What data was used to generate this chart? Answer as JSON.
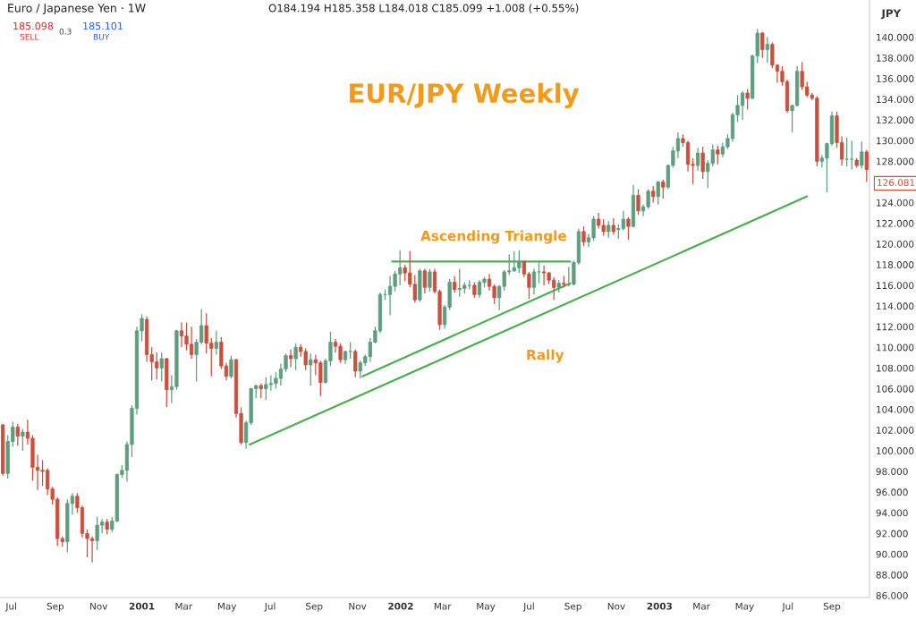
{
  "chart_data": {
    "type": "candlestick",
    "title": "EUR/JPY Weekly",
    "ylabel": "JPY",
    "x": [
      "2000-06-19",
      "2000-06-26",
      "2000-07-03",
      "2000-07-10",
      "2000-07-17",
      "2000-07-24",
      "2000-07-31",
      "2000-08-07",
      "2000-08-14",
      "2000-08-21",
      "2000-08-28",
      "2000-09-04",
      "2000-09-11",
      "2000-09-18",
      "2000-09-25",
      "2000-10-02",
      "2000-10-09",
      "2000-10-16",
      "2000-10-23",
      "2000-10-30",
      "2000-11-06",
      "2000-11-13",
      "2000-11-20",
      "2000-11-27",
      "2000-12-04",
      "2000-12-11",
      "2000-12-18",
      "2000-12-25",
      "2001-01-01",
      "2001-01-08",
      "2001-01-15",
      "2001-01-22",
      "2001-01-29",
      "2001-02-05",
      "2001-02-12",
      "2001-02-19",
      "2001-02-26",
      "2001-03-05",
      "2001-03-12",
      "2001-03-19",
      "2001-03-26",
      "2001-04-02",
      "2001-04-09",
      "2001-04-16",
      "2001-04-23",
      "2001-04-30",
      "2001-05-07",
      "2001-05-14",
      "2001-05-21",
      "2001-05-28",
      "2001-06-04",
      "2001-06-11",
      "2001-06-18",
      "2001-06-25",
      "2001-07-02",
      "2001-07-09",
      "2001-07-16",
      "2001-07-23",
      "2001-07-30",
      "2001-08-06",
      "2001-08-13",
      "2001-08-20",
      "2001-08-27",
      "2001-09-03",
      "2001-09-10",
      "2001-09-17",
      "2001-09-24",
      "2001-10-01",
      "2001-10-08",
      "2001-10-15",
      "2001-10-22",
      "2001-10-29",
      "2001-11-05",
      "2001-11-12",
      "2001-11-19",
      "2001-11-26",
      "2001-12-03",
      "2001-12-10",
      "2001-12-17",
      "2001-12-24",
      "2001-12-31",
      "2002-01-07",
      "2002-01-14",
      "2002-01-21",
      "2002-01-28",
      "2002-02-04",
      "2002-02-11",
      "2002-02-18",
      "2002-02-25",
      "2002-03-04",
      "2002-03-11",
      "2002-03-18",
      "2002-03-25",
      "2002-04-01",
      "2002-04-08",
      "2002-04-15",
      "2002-04-22",
      "2002-04-29",
      "2002-05-06",
      "2002-05-13",
      "2002-05-20",
      "2002-05-27",
      "2002-06-03",
      "2002-06-10",
      "2002-06-17",
      "2002-06-24",
      "2002-07-01",
      "2002-07-08",
      "2002-07-15",
      "2002-07-22",
      "2002-07-29",
      "2002-08-05",
      "2002-08-12",
      "2002-08-19",
      "2002-08-26",
      "2002-09-02",
      "2002-09-09",
      "2002-09-16",
      "2002-09-23",
      "2002-09-30",
      "2002-10-07",
      "2002-10-14",
      "2002-10-21",
      "2002-10-28",
      "2002-11-04",
      "2002-11-11",
      "2002-11-18",
      "2002-11-25",
      "2002-12-02",
      "2002-12-09",
      "2002-12-16",
      "2002-12-23",
      "2002-12-30",
      "2003-01-06",
      "2003-01-13",
      "2003-01-20",
      "2003-01-27",
      "2003-02-03",
      "2003-02-10",
      "2003-02-17",
      "2003-02-24",
      "2003-03-03",
      "2003-03-10",
      "2003-03-17",
      "2003-03-24",
      "2003-03-31",
      "2003-04-07",
      "2003-04-14",
      "2003-04-21",
      "2003-04-28",
      "2003-05-05",
      "2003-05-12",
      "2003-05-19",
      "2003-05-26",
      "2003-06-02",
      "2003-06-09",
      "2003-06-16",
      "2003-06-23",
      "2003-06-30",
      "2003-07-07",
      "2003-07-14",
      "2003-07-21",
      "2003-07-28",
      "2003-08-04",
      "2003-08-11",
      "2003-08-18",
      "2003-08-25",
      "2003-09-01",
      "2003-09-08",
      "2003-09-15",
      "2003-09-22",
      "2003-09-29",
      "2003-10-06",
      "2003-10-13",
      "2003-10-20"
    ],
    "ohlc": [
      [
        102.5,
        102.6,
        97.6,
        97.8
      ],
      [
        97.8,
        101.5,
        97.3,
        100.9
      ],
      [
        100.9,
        102.8,
        100.4,
        102.3
      ],
      [
        102.3,
        102.6,
        100.5,
        101.4
      ],
      [
        101.4,
        102.1,
        100.0,
        101.8
      ],
      [
        101.8,
        103.0,
        100.6,
        101.2
      ],
      [
        101.2,
        101.5,
        97.1,
        98.4
      ],
      [
        98.4,
        99.6,
        96.2,
        98.1
      ],
      [
        98.1,
        99.1,
        96.6,
        98.0
      ],
      [
        98.1,
        98.3,
        95.7,
        96.3
      ],
      [
        96.3,
        96.5,
        94.8,
        95.3
      ],
      [
        95.3,
        95.5,
        90.8,
        91.5
      ],
      [
        91.5,
        91.7,
        90.7,
        91.2
      ],
      [
        91.2,
        95.3,
        90.2,
        94.9
      ],
      [
        94.9,
        95.9,
        93.8,
        95.6
      ],
      [
        95.6,
        95.9,
        94.0,
        94.5
      ],
      [
        94.5,
        94.7,
        91.6,
        92.0
      ],
      [
        92.0,
        92.4,
        89.7,
        91.5
      ],
      [
        91.5,
        91.7,
        89.2,
        91.3
      ],
      [
        91.3,
        93.6,
        90.4,
        92.8
      ],
      [
        92.8,
        93.4,
        92.0,
        93.1
      ],
      [
        93.1,
        93.4,
        91.9,
        92.4
      ],
      [
        92.4,
        93.6,
        92.1,
        93.2
      ],
      [
        93.2,
        97.8,
        93.1,
        97.7
      ],
      [
        97.7,
        98.6,
        97.4,
        98.1
      ],
      [
        98.1,
        100.9,
        97.0,
        100.6
      ],
      [
        100.6,
        104.4,
        99.4,
        104.1
      ],
      [
        104.1,
        112.0,
        103.5,
        111.6
      ],
      [
        111.6,
        113.2,
        110.6,
        112.8
      ],
      [
        112.7,
        113.0,
        108.6,
        109.3
      ],
      [
        109.3,
        110.0,
        106.8,
        108.6
      ],
      [
        108.6,
        109.5,
        106.9,
        108.0
      ],
      [
        108.0,
        109.5,
        106.7,
        108.9
      ],
      [
        108.9,
        109.0,
        104.2,
        105.9
      ],
      [
        105.9,
        107.3,
        104.6,
        106.2
      ],
      [
        106.2,
        111.7,
        105.9,
        111.6
      ],
      [
        111.6,
        112.4,
        110.0,
        111.1
      ],
      [
        111.1,
        112.4,
        109.7,
        110.3
      ],
      [
        110.3,
        112.0,
        108.9,
        109.3
      ],
      [
        109.3,
        110.8,
        106.7,
        110.5
      ],
      [
        110.5,
        113.7,
        110.3,
        112.1
      ],
      [
        112.1,
        113.3,
        109.4,
        110.4
      ],
      [
        110.4,
        110.9,
        107.2,
        109.9
      ],
      [
        109.9,
        111.6,
        109.3,
        110.5
      ],
      [
        110.5,
        111.0,
        107.9,
        108.2
      ],
      [
        108.2,
        108.5,
        106.8,
        107.2
      ],
      [
        107.2,
        109.2,
        107.0,
        108.8
      ],
      [
        108.8,
        108.9,
        103.2,
        103.6
      ],
      [
        103.6,
        104.2,
        100.6,
        100.8
      ],
      [
        100.8,
        102.9,
        100.2,
        102.7
      ],
      [
        102.7,
        106.1,
        102.5,
        106.0
      ],
      [
        106.0,
        106.4,
        105.1,
        106.3
      ],
      [
        106.3,
        106.5,
        105.1,
        106.0
      ],
      [
        106.0,
        107.1,
        104.9,
        106.4
      ],
      [
        106.4,
        107.3,
        105.8,
        106.5
      ],
      [
        106.5,
        107.6,
        106.0,
        107.0
      ],
      [
        107.0,
        108.4,
        106.3,
        107.9
      ],
      [
        107.9,
        109.4,
        107.6,
        109.2
      ],
      [
        109.2,
        109.8,
        108.1,
        108.9
      ],
      [
        108.9,
        110.4,
        107.8,
        110.0
      ],
      [
        110.0,
        110.3,
        109.1,
        109.6
      ],
      [
        109.6,
        109.9,
        107.8,
        108.3
      ],
      [
        108.3,
        109.4,
        106.3,
        108.8
      ],
      [
        108.8,
        109.3,
        107.3,
        108.5
      ],
      [
        108.5,
        108.7,
        105.3,
        106.6
      ],
      [
        106.6,
        108.9,
        106.5,
        108.7
      ],
      [
        108.7,
        111.5,
        108.2,
        110.5
      ],
      [
        110.5,
        110.8,
        109.5,
        110.1
      ],
      [
        110.1,
        110.4,
        108.5,
        108.8
      ],
      [
        108.8,
        109.7,
        108.4,
        109.6
      ],
      [
        109.6,
        110.5,
        108.9,
        109.6
      ],
      [
        109.6,
        109.8,
        107.1,
        107.7
      ],
      [
        107.7,
        108.7,
        107.0,
        108.5
      ],
      [
        108.5,
        109.3,
        108.2,
        109.1
      ],
      [
        109.1,
        110.9,
        108.6,
        110.5
      ],
      [
        110.5,
        112.0,
        110.4,
        111.6
      ],
      [
        111.6,
        115.3,
        111.4,
        115.1
      ],
      [
        115.1,
        115.6,
        114.6,
        115.1
      ],
      [
        115.1,
        116.9,
        113.1,
        115.9
      ],
      [
        115.9,
        117.4,
        115.4,
        117.1
      ],
      [
        117.1,
        119.4,
        116.0,
        117.7
      ],
      [
        117.7,
        118.0,
        116.4,
        117.2
      ],
      [
        117.2,
        119.3,
        115.8,
        116.1
      ],
      [
        116.1,
        117.0,
        114.3,
        114.6
      ],
      [
        114.6,
        117.6,
        114.4,
        117.4
      ],
      [
        117.4,
        117.6,
        115.2,
        115.8
      ],
      [
        115.8,
        117.6,
        115.4,
        117.3
      ],
      [
        117.3,
        117.6,
        115.2,
        115.4
      ],
      [
        115.4,
        115.6,
        111.7,
        112.2
      ],
      [
        112.2,
        114.1,
        111.8,
        113.9
      ],
      [
        113.9,
        116.6,
        113.6,
        116.3
      ],
      [
        116.3,
        116.9,
        115.3,
        115.6
      ],
      [
        115.6,
        117.6,
        114.9,
        115.7
      ],
      [
        115.7,
        116.3,
        115.2,
        116.0
      ],
      [
        116.0,
        116.5,
        115.6,
        116.0
      ],
      [
        116.0,
        116.3,
        114.8,
        115.1
      ],
      [
        115.1,
        116.5,
        114.8,
        116.3
      ],
      [
        116.3,
        116.8,
        115.8,
        116.6
      ],
      [
        116.6,
        117.1,
        115.5,
        115.9
      ],
      [
        115.9,
        116.1,
        114.2,
        114.8
      ],
      [
        114.8,
        116.0,
        113.6,
        115.9
      ],
      [
        115.9,
        117.5,
        115.5,
        117.3
      ],
      [
        117.3,
        119.0,
        117.0,
        117.4
      ],
      [
        117.4,
        119.3,
        117.3,
        117.7
      ],
      [
        117.7,
        119.4,
        117.2,
        118.3
      ],
      [
        118.3,
        118.4,
        116.8,
        117.1
      ],
      [
        117.1,
        117.3,
        114.7,
        115.8
      ],
      [
        115.8,
        117.6,
        115.1,
        117.3
      ],
      [
        117.3,
        118.4,
        116.2,
        117.3
      ],
      [
        117.3,
        117.9,
        116.0,
        117.2
      ],
      [
        117.2,
        117.3,
        116.1,
        116.5
      ],
      [
        116.5,
        116.8,
        114.6,
        115.8
      ],
      [
        115.8,
        116.5,
        115.3,
        116.2
      ],
      [
        116.2,
        116.9,
        115.8,
        116.1
      ],
      [
        116.1,
        117.8,
        115.9,
        116.1
      ],
      [
        116.1,
        118.4,
        116.0,
        118.2
      ],
      [
        118.2,
        121.5,
        118.0,
        121.2
      ],
      [
        121.2,
        121.7,
        119.8,
        120.2
      ],
      [
        120.2,
        121.0,
        119.7,
        120.6
      ],
      [
        120.6,
        122.7,
        120.3,
        122.4
      ],
      [
        122.4,
        123.0,
        121.5,
        121.8
      ],
      [
        121.8,
        122.4,
        120.8,
        121.2
      ],
      [
        121.2,
        122.2,
        120.6,
        121.8
      ],
      [
        121.8,
        122.5,
        120.9,
        121.2
      ],
      [
        121.4,
        121.9,
        120.5,
        121.5
      ],
      [
        121.5,
        123.2,
        121.3,
        122.4
      ],
      [
        122.4,
        122.6,
        120.4,
        121.7
      ],
      [
        121.7,
        125.7,
        121.6,
        124.7
      ],
      [
        124.7,
        125.3,
        122.8,
        123.2
      ],
      [
        123.2,
        123.8,
        122.7,
        123.6
      ],
      [
        123.6,
        125.3,
        123.4,
        125.1
      ],
      [
        125.1,
        125.6,
        124.0,
        124.6
      ],
      [
        124.6,
        126.1,
        123.8,
        126.0
      ],
      [
        126.0,
        126.2,
        124.4,
        125.5
      ],
      [
        125.5,
        127.7,
        125.3,
        127.6
      ],
      [
        127.6,
        129.4,
        127.4,
        129.0
      ],
      [
        129.0,
        130.8,
        128.3,
        130.2
      ],
      [
        130.2,
        130.6,
        129.4,
        129.8
      ],
      [
        129.8,
        130.0,
        127.0,
        127.7
      ],
      [
        127.7,
        128.3,
        125.8,
        127.6
      ],
      [
        127.6,
        129.3,
        127.1,
        128.8
      ],
      [
        128.8,
        129.4,
        126.3,
        127.0
      ],
      [
        127.0,
        128.1,
        125.4,
        127.8
      ],
      [
        127.8,
        129.6,
        127.5,
        129.1
      ],
      [
        129.1,
        129.5,
        127.7,
        128.7
      ],
      [
        128.7,
        129.8,
        128.4,
        129.4
      ],
      [
        129.4,
        130.6,
        129.2,
        130.2
      ],
      [
        130.2,
        132.7,
        129.9,
        132.5
      ],
      [
        132.5,
        134.4,
        131.8,
        133.4
      ],
      [
        133.4,
        134.8,
        132.0,
        134.6
      ],
      [
        134.6,
        135.0,
        133.0,
        134.1
      ],
      [
        134.1,
        138.3,
        134.0,
        138.2
      ],
      [
        138.2,
        140.8,
        137.5,
        140.4
      ],
      [
        140.4,
        140.5,
        138.0,
        138.8
      ],
      [
        138.8,
        140.0,
        137.5,
        139.3
      ],
      [
        139.3,
        139.5,
        137.0,
        137.3
      ],
      [
        137.3,
        137.4,
        135.6,
        136.7
      ],
      [
        136.7,
        137.2,
        135.3,
        135.7
      ],
      [
        135.7,
        135.9,
        132.7,
        132.9
      ],
      [
        132.9,
        133.5,
        130.8,
        133.4
      ],
      [
        133.4,
        137.2,
        133.3,
        136.7
      ],
      [
        136.7,
        137.6,
        134.9,
        135.2
      ],
      [
        135.2,
        135.7,
        134.2,
        134.4
      ],
      [
        134.4,
        134.6,
        133.9,
        134.1
      ],
      [
        134.1,
        134.3,
        127.5,
        128.0
      ],
      [
        128.0,
        128.6,
        127.4,
        128.3
      ],
      [
        128.3,
        129.8,
        125.0,
        129.7
      ],
      [
        129.7,
        132.8,
        129.5,
        132.4
      ],
      [
        132.4,
        132.8,
        129.3,
        129.8
      ],
      [
        129.8,
        130.4,
        127.6,
        128.2
      ],
      [
        128.2,
        130.3,
        127.5,
        128.2
      ],
      [
        128.2,
        130.0,
        127.2,
        128.2
      ],
      [
        128.1,
        128.3,
        127.4,
        127.6
      ],
      [
        127.6,
        129.9,
        127.3,
        128.9
      ],
      [
        128.9,
        129.1,
        126.0,
        127.2
      ]
    ],
    "series": [
      {
        "type": "line",
        "color": "#4caf50",
        "x": [
          "2001-12-20",
          "2002-08-28"
        ],
        "values": [
          118.3,
          118.3
        ]
      },
      {
        "type": "line",
        "color": "#4caf50",
        "x": [
          "2001-11-08",
          "2002-08-28"
        ],
        "values": [
          107.2,
          116.2
        ]
      },
      {
        "type": "line",
        "color": "#4caf50",
        "x": [
          "2001-06-02",
          "2003-07-28"
        ],
        "values": [
          100.6,
          124.6
        ]
      }
    ],
    "annotations": [
      "Euro / Japanese Yen · 1W",
      "O184.194 H185.358 L184.018 C185.099 +1.008 (+0.55%)",
      "185.098",
      "SELL",
      "0.3",
      "185.101",
      "BUY",
      "Ascending Triangle",
      "Rally",
      "126.081"
    ],
    "xlim": [
      "2000-06-15",
      "2003-10-24"
    ],
    "xticks": [
      {
        "value": "2000-07-01",
        "label": "Jul"
      },
      {
        "value": "2000-09-01",
        "label": "Sep"
      },
      {
        "value": "2000-11-01",
        "label": "Nov"
      },
      {
        "value": "2001-01-01",
        "label": "2001"
      },
      {
        "value": "2001-03-01",
        "label": "Mar"
      },
      {
        "value": "2001-05-01",
        "label": "May"
      },
      {
        "value": "2001-07-01",
        "label": "Jul"
      },
      {
        "value": "2001-09-01",
        "label": "Sep"
      },
      {
        "value": "2001-11-01",
        "label": "Nov"
      },
      {
        "value": "2002-01-01",
        "label": "2002"
      },
      {
        "value": "2002-03-01",
        "label": "Mar"
      },
      {
        "value": "2002-05-01",
        "label": "May"
      },
      {
        "value": "2002-07-01",
        "label": "Jul"
      },
      {
        "value": "2002-09-01",
        "label": "Sep"
      },
      {
        "value": "2002-11-01",
        "label": "Nov"
      },
      {
        "value": "2003-01-01",
        "label": "2003"
      },
      {
        "value": "2003-03-01",
        "label": "Mar"
      },
      {
        "value": "2003-05-01",
        "label": "May"
      },
      {
        "value": "2003-07-01",
        "label": "Jul"
      },
      {
        "value": "2003-09-01",
        "label": "Sep"
      }
    ],
    "ylim": [
      85.8,
      143.6
    ],
    "yticks": [
      {
        "value": 86,
        "label": "86.000"
      },
      {
        "value": 88,
        "label": "88.000"
      },
      {
        "value": 90,
        "label": "90.000"
      },
      {
        "value": 92,
        "label": "92.000"
      },
      {
        "value": 94,
        "label": "94.000"
      },
      {
        "value": 96,
        "label": "96.000"
      },
      {
        "value": 98,
        "label": "98.000"
      },
      {
        "value": 100,
        "label": "100.000"
      },
      {
        "value": 102,
        "label": "102.000"
      },
      {
        "value": 104,
        "label": "104.000"
      },
      {
        "value": 106,
        "label": "106.000"
      },
      {
        "value": 108,
        "label": "108.000"
      },
      {
        "value": 110,
        "label": "110.000"
      },
      {
        "value": 112,
        "label": "112.000"
      },
      {
        "value": 114,
        "label": "114.000"
      },
      {
        "value": 116,
        "label": "116.000"
      },
      {
        "value": 118,
        "label": "118.000"
      },
      {
        "value": 120,
        "label": "120.000"
      },
      {
        "value": 122,
        "label": "122.000"
      },
      {
        "value": 124,
        "label": "124.000"
      },
      {
        "value": 128,
        "label": "128.000"
      },
      {
        "value": 130,
        "label": "130.000"
      },
      {
        "value": 132,
        "label": "132.000"
      },
      {
        "value": 134,
        "label": "134.000"
      },
      {
        "value": 136,
        "label": "136.000"
      },
      {
        "value": 138,
        "label": "138.000"
      },
      {
        "value": 140,
        "label": "140.000"
      }
    ]
  }
}
